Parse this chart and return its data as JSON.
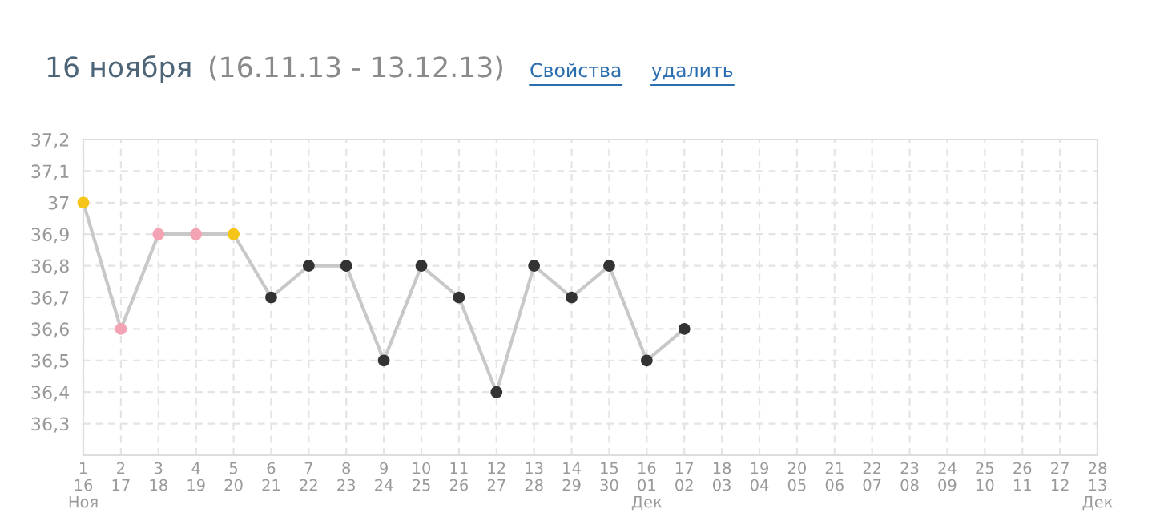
{
  "chart_data": {
    "type": "line",
    "title": "16 ноября",
    "subtitle": "(16.11.13 - 13.12.13)",
    "annotations": [
      "Свойства",
      "удалить"
    ],
    "categories": [
      "1\n16\nНоя",
      "2\n17",
      "3\n18",
      "4\n19",
      "5\n20",
      "6\n21",
      "7\n22",
      "8\n23",
      "9\n24",
      "10\n25",
      "11\n26",
      "12\n27",
      "13\n28",
      "14\n29",
      "15\n30",
      "16\n01\nДек",
      "17\n02",
      "18\n03",
      "19\n04",
      "20\n05",
      "21\n06",
      "22\n07",
      "23\n08",
      "24\n09",
      "25\n10",
      "26\n11",
      "27\n12",
      "28\n13\nДек"
    ],
    "series": [
      {
        "color": "#c8c8c8",
        "values": [
          37,
          36.6,
          36.9,
          36.9,
          36.9,
          36.7,
          36.8,
          36.8,
          36.5,
          36.8,
          36.7,
          36.4,
          36.8,
          36.7,
          36.8,
          36.5,
          36.6,
          null,
          null,
          null,
          null,
          null,
          null,
          null,
          null,
          null,
          null,
          null
        ],
        "colors": [
          "#f5c518",
          "#f4a3b4",
          "#f4a3b4",
          "#f4a3b4",
          "#f5c518",
          "#333333",
          "#333333",
          "#333333",
          "#333333",
          "#333333",
          "#333333",
          "#333333",
          "#333333",
          "#333333",
          "#333333",
          "#333333",
          "#333333",
          null,
          null,
          null,
          null,
          null,
          null,
          null,
          null,
          null,
          null,
          null
        ]
      }
    ],
    "ylim": [
      36.2,
      37.2
    ],
    "yticks": [
      {
        "value": 36.3,
        "label": "36,3"
      },
      {
        "value": 36.4,
        "label": "36,4"
      },
      {
        "value": 36.5,
        "label": "36,5"
      },
      {
        "value": 36.6,
        "label": "36,6"
      },
      {
        "value": 36.7,
        "label": "36,7"
      },
      {
        "value": 36.8,
        "label": "36,8"
      },
      {
        "value": 36.9,
        "label": "36,9"
      },
      {
        "value": 37,
        "label": "37"
      },
      {
        "value": 37.1,
        "label": "37,1"
      },
      {
        "value": 37.2,
        "label": "37,2"
      }
    ],
    "grid": true,
    "marker": "circle",
    "line_style": "solid",
    "legend": false
  }
}
